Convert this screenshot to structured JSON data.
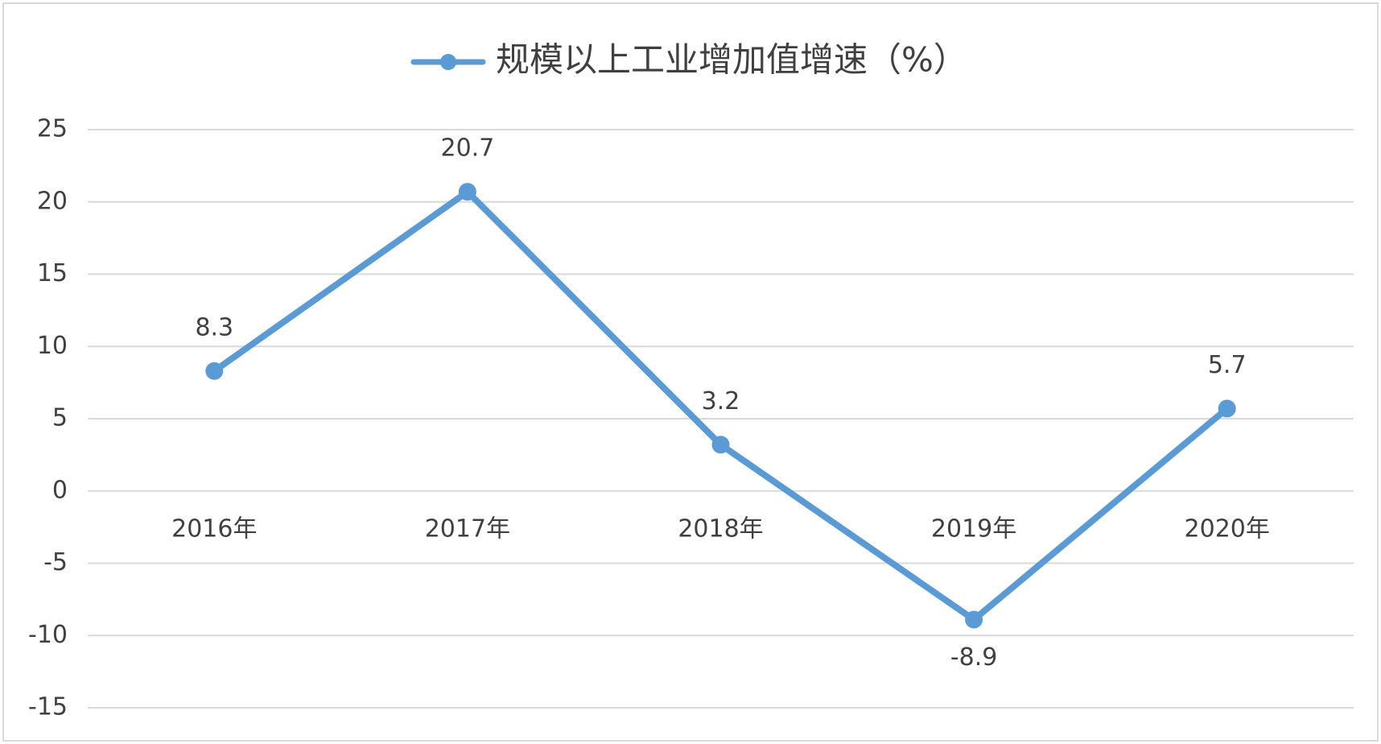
{
  "chart_data": {
    "type": "line",
    "categories": [
      "2016年",
      "2017年",
      "2018年",
      "2019年",
      "2020年"
    ],
    "series": [
      {
        "name": "规模以上工业增加值增速（%）",
        "color": "#5b9bd5",
        "values": [
          8.3,
          20.7,
          3.2,
          -8.9,
          5.7
        ]
      }
    ],
    "ylim": [
      -15,
      25
    ],
    "yticks": [
      -15,
      -10,
      -5,
      0,
      5,
      10,
      15,
      20,
      25
    ],
    "grid": true,
    "legend": "top"
  }
}
